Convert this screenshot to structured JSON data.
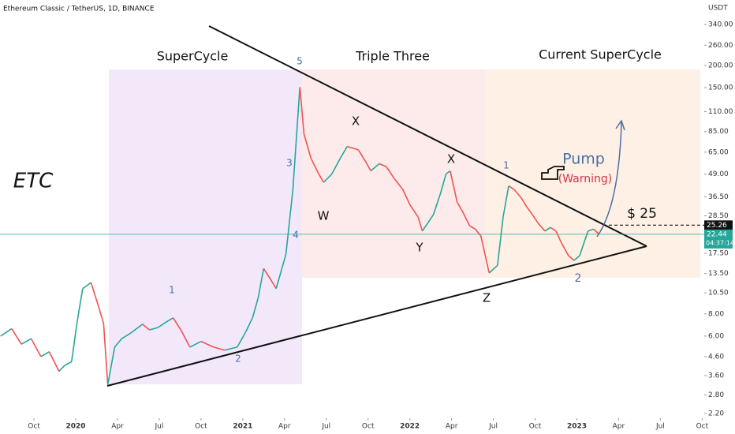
{
  "header": "Ethereum Classic / TetherUS, 1D, BINANCE",
  "currency": "USDT",
  "chart_data": {
    "type": "line",
    "log_scale": true,
    "color_up": "#26a69a",
    "color_down": "#ef5350",
    "x": [
      -5.4,
      -4.6,
      -3.9,
      -3.2,
      -2.5,
      -1.9,
      -1.2,
      -0.8,
      -0.3,
      0.1,
      0.5,
      1.1,
      1.6,
      2.0,
      2.3,
      2.8,
      3.3,
      3.9,
      4.8,
      5.3,
      5.9,
      6.5,
      7.0,
      7.6,
      8.2,
      9.0,
      9.9,
      10.7,
      11.6,
      12.2,
      12.7,
      13.1,
      13.5,
      14.0,
      14.4,
      15.1,
      15.6,
      16.1,
      16.4,
      16.9,
      17.4,
      17.8,
      18.4,
      19.0,
      19.5,
      20.3,
      20.8,
      21.2,
      21.8,
      22.3,
      22.9,
      23.5,
      24.0,
      24.6,
      24.9,
      25.3,
      25.7,
      26.2,
      26.6,
      26.9,
      27.4,
      27.8,
      28.3,
      28.7,
      29.1,
      29.7,
      30.3,
      30.7,
      31.1,
      31.5,
      32.0,
      32.4,
      32.8,
      33.2,
      33.7,
      34.1,
      34.5,
      34.9,
      35.4,
      35.8,
      36.2,
      36.8,
      37.2,
      37.6
    ],
    "values": [
      6.0,
      6.6,
      5.4,
      5.8,
      4.6,
      4.9,
      3.8,
      4.1,
      4.3,
      7.2,
      11.1,
      12.0,
      9.0,
      7.1,
      3.2,
      5.2,
      5.8,
      6.2,
      7.0,
      6.5,
      6.7,
      7.2,
      7.6,
      6.4,
      5.2,
      5.6,
      5.2,
      5.0,
      5.2,
      6.3,
      7.6,
      9.8,
      14.4,
      12.5,
      11.1,
      17.3,
      40.0,
      151.0,
      82.0,
      60.0,
      50.0,
      44.0,
      49.0,
      60.0,
      70.0,
      67.0,
      58.0,
      51.0,
      56.0,
      54.0,
      46.0,
      40.0,
      33.0,
      28.0,
      23.4,
      26.0,
      29.0,
      38.0,
      49.0,
      51.0,
      34.0,
      30.0,
      25.0,
      24.0,
      22.0,
      13.6,
      15.0,
      28.0,
      42.0,
      40.0,
      36.0,
      32.0,
      29.0,
      26.0,
      23.4,
      24.5,
      23.4,
      20.0,
      17.0,
      16.0,
      17.0,
      23.4,
      24.0,
      22.44
    ],
    "xlim": [
      -5.44,
      45.15
    ],
    "ylim": [
      2.07,
      467
    ],
    "xticks": [
      {
        "value": -3,
        "label": "Oct"
      },
      {
        "value": 0,
        "label": "2020"
      },
      {
        "value": 3,
        "label": "Apr"
      },
      {
        "value": 6,
        "label": "Jul"
      },
      {
        "value": 9,
        "label": "Oct"
      },
      {
        "value": 12,
        "label": "2021"
      },
      {
        "value": 15,
        "label": "Apr"
      },
      {
        "value": 18,
        "label": "Jul"
      },
      {
        "value": 21,
        "label": "Oct"
      },
      {
        "value": 24,
        "label": "2022"
      },
      {
        "value": 27,
        "label": "Apr"
      },
      {
        "value": 30,
        "label": "Jul"
      },
      {
        "value": 33,
        "label": "Oct"
      },
      {
        "value": 36,
        "label": "2023"
      },
      {
        "value": 39,
        "label": "Apr"
      },
      {
        "value": 42,
        "label": "Jul"
      },
      {
        "value": 45,
        "label": "Oct"
      }
    ],
    "yticks": [
      {
        "value": 340,
        "label": "340.00"
      },
      {
        "value": 260,
        "label": "260.00"
      },
      {
        "value": 200,
        "label": "200.00"
      },
      {
        "value": 150,
        "label": "150.00"
      },
      {
        "value": 110,
        "label": "110.00"
      },
      {
        "value": 85,
        "label": "85.00"
      },
      {
        "value": 65,
        "label": "65.00"
      },
      {
        "value": 49,
        "label": "49.00"
      },
      {
        "value": 36.5,
        "label": "36.50"
      },
      {
        "value": 28.5,
        "label": "28.50"
      },
      {
        "value": 17.5,
        "label": "17.50"
      },
      {
        "value": 13.5,
        "label": "13.50"
      },
      {
        "value": 10.5,
        "label": "10.50"
      },
      {
        "value": 8,
        "label": "8.00"
      },
      {
        "value": 6,
        "label": "6.00"
      },
      {
        "value": 4.6,
        "label": "4.60"
      },
      {
        "value": 3.6,
        "label": "3.60"
      },
      {
        "value": 2.8,
        "label": "2.80"
      },
      {
        "value": 2.2,
        "label": "2.20"
      }
    ],
    "level": 25.26,
    "last_price": 22.44,
    "countdown": "04:37:14"
  },
  "annotations": {
    "regions": [
      "SuperCycle",
      "Triple Three",
      "Current SuperCycle"
    ],
    "symbol": "ETC",
    "pump": "Pump",
    "warning": "(Warning)",
    "target": "$ 25",
    "waves": [
      "5",
      "3",
      "4",
      "1",
      "2",
      "X",
      "W",
      "Y",
      "X",
      "Z",
      "1",
      "2"
    ]
  }
}
